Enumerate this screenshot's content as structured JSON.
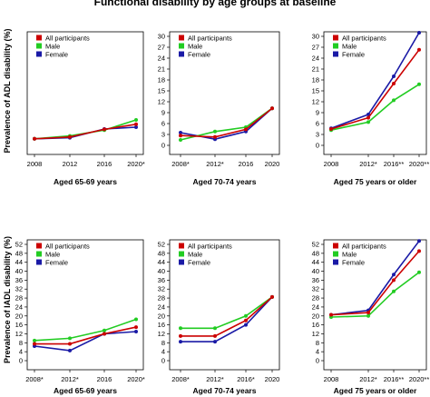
{
  "title": "Functional disability by age groups at baseline",
  "ylabel_top": "Prevalence of ADL disability (%)",
  "ylabel_bottom": "Prevalence of IADL disability (%)",
  "colors": {
    "All participants": "#cc0000",
    "Male": "#22cc22",
    "Female": "#1a1aa6"
  },
  "chart_data": [
    {
      "type": "line",
      "panel": "ADL 65-69",
      "xlabel": "Aged 65-69 years",
      "categories": [
        "2008",
        "2012",
        "2016",
        "2020*"
      ],
      "ylim": [
        0,
        30
      ],
      "yticks": [
        0,
        3,
        6,
        9,
        12,
        15,
        18,
        21,
        24,
        27,
        30
      ],
      "show_yticks": false,
      "legend": "top-left",
      "series": [
        {
          "name": "All participants",
          "values": [
            1.8,
            2.3,
            4.4,
            5.8
          ]
        },
        {
          "name": "Male",
          "values": [
            1.8,
            2.6,
            4.2,
            7.0
          ]
        },
        {
          "name": "Female",
          "values": [
            1.8,
            2.1,
            4.5,
            5.0
          ]
        }
      ]
    },
    {
      "type": "line",
      "panel": "ADL 70-74",
      "xlabel": "Aged 70-74 years",
      "categories": [
        "2008*",
        "2012*",
        "2016",
        "2020"
      ],
      "ylim": [
        0,
        30
      ],
      "yticks": [
        0,
        3,
        6,
        9,
        12,
        15,
        18,
        21,
        24,
        27,
        30
      ],
      "show_yticks": true,
      "legend": "top-left",
      "series": [
        {
          "name": "All participants",
          "values": [
            2.7,
            2.3,
            4.4,
            10.2
          ]
        },
        {
          "name": "Male",
          "values": [
            1.5,
            3.8,
            5.0,
            10.2
          ]
        },
        {
          "name": "Female",
          "values": [
            3.5,
            1.7,
            3.8,
            10.2
          ]
        }
      ]
    },
    {
      "type": "line",
      "panel": "ADL 75+",
      "xlabel": "Aged 75 years or older",
      "categories": [
        "2008",
        "2012*",
        "2016**",
        "2020**"
      ],
      "ylim": [
        0,
        30
      ],
      "yticks": [
        0,
        3,
        6,
        9,
        12,
        15,
        18,
        21,
        24,
        27,
        30
      ],
      "show_yticks": true,
      "legend": "top-left",
      "series": [
        {
          "name": "All participants",
          "values": [
            4.5,
            7.6,
            17.0,
            26.3
          ]
        },
        {
          "name": "Male",
          "values": [
            4.2,
            6.4,
            12.4,
            16.8
          ]
        },
        {
          "name": "Female",
          "values": [
            4.7,
            8.5,
            19.0,
            31.0
          ]
        }
      ]
    },
    {
      "type": "line",
      "panel": "IADL 65-69",
      "xlabel": "Aged 65-69 years",
      "categories": [
        "2008*",
        "2012*",
        "2016",
        "2020*"
      ],
      "ylim": [
        0,
        52
      ],
      "yticks": [
        0,
        4,
        8,
        12,
        16,
        20,
        24,
        28,
        32,
        36,
        40,
        44,
        48,
        52
      ],
      "show_yticks": true,
      "legend": "top-left",
      "series": [
        {
          "name": "All participants",
          "values": [
            7.5,
            7.5,
            12.0,
            15.0
          ]
        },
        {
          "name": "Male",
          "values": [
            9.0,
            10.0,
            13.5,
            18.5
          ]
        },
        {
          "name": "Female",
          "values": [
            6.5,
            4.5,
            12.0,
            13.0
          ]
        }
      ]
    },
    {
      "type": "line",
      "panel": "IADL 70-74",
      "xlabel": "Aged 70-74 years",
      "categories": [
        "2008*",
        "2012*",
        "2016*",
        "2020"
      ],
      "ylim": [
        0,
        52
      ],
      "yticks": [
        0,
        4,
        8,
        12,
        16,
        20,
        24,
        28,
        32,
        36,
        40,
        44,
        48,
        52
      ],
      "show_yticks": true,
      "legend": "top-left",
      "series": [
        {
          "name": "All participants",
          "values": [
            11.0,
            11.0,
            18.0,
            28.5
          ]
        },
        {
          "name": "Male",
          "values": [
            14.5,
            14.5,
            20.0,
            28.5
          ]
        },
        {
          "name": "Female",
          "values": [
            8.5,
            8.5,
            16.0,
            28.5
          ]
        }
      ]
    },
    {
      "type": "line",
      "panel": "IADL 75+",
      "xlabel": "Aged 75 years or older",
      "categories": [
        "2008",
        "2012*",
        "2016**",
        "2020**"
      ],
      "ylim": [
        0,
        52
      ],
      "yticks": [
        0,
        4,
        8,
        12,
        16,
        20,
        24,
        28,
        32,
        36,
        40,
        44,
        48,
        52
      ],
      "show_yticks": true,
      "legend": "top-left",
      "series": [
        {
          "name": "All participants",
          "values": [
            20.5,
            21.5,
            36.0,
            49.0
          ]
        },
        {
          "name": "Male",
          "values": [
            19.5,
            20.0,
            31.0,
            39.5
          ]
        },
        {
          "name": "Female",
          "values": [
            20.5,
            22.5,
            38.5,
            53.5
          ]
        }
      ]
    }
  ]
}
